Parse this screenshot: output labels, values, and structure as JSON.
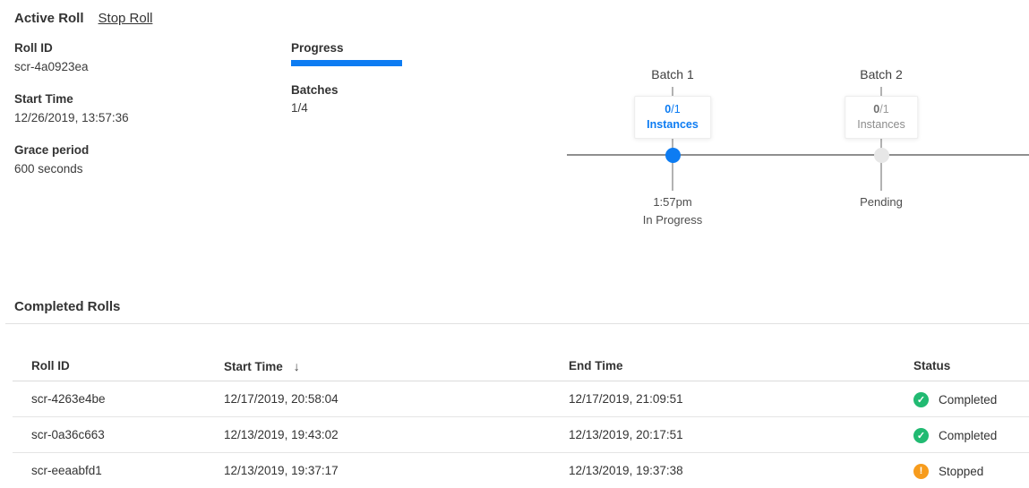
{
  "colors": {
    "accent": "#0d7cf2",
    "success": "#21ba72",
    "warning": "#f79c1d"
  },
  "active_roll": {
    "title": "Active Roll",
    "stop_link": "Stop Roll",
    "details": [
      {
        "label": "Roll ID",
        "value": "scr-4a0923ea"
      },
      {
        "label": "Start Time",
        "value": "12/26/2019, 13:57:36"
      },
      {
        "label": "Grace period",
        "value": "600 seconds"
      }
    ],
    "progress": {
      "label": "Progress",
      "percent": 100
    },
    "batches": {
      "label": "Batches",
      "value": "1/4"
    }
  },
  "timeline": {
    "batches": [
      {
        "name": "Batch 1",
        "count": "0",
        "suffix": "/1",
        "instances_label": "Instances",
        "time": "1:57pm",
        "status": "In Progress",
        "state": "active"
      },
      {
        "name": "Batch 2",
        "count": "0",
        "suffix": "/1",
        "instances_label": "Instances",
        "time": "Pending",
        "status": "",
        "state": "pending"
      }
    ]
  },
  "completed_rolls": {
    "title": "Completed Rolls",
    "columns": {
      "roll_id": "Roll ID",
      "start_time": "Start Time",
      "end_time": "End Time",
      "status": "Status"
    },
    "sort_icon": "↓",
    "rows": [
      {
        "roll_id": "scr-4263e4be",
        "start_time": "12/17/2019, 20:58:04",
        "end_time": "12/17/2019, 21:09:51",
        "status": "Completed",
        "status_type": "success"
      },
      {
        "roll_id": "scr-0a36c663",
        "start_time": "12/13/2019, 19:43:02",
        "end_time": "12/13/2019, 20:17:51",
        "status": "Completed",
        "status_type": "success"
      },
      {
        "roll_id": "scr-eeaabfd1",
        "start_time": "12/13/2019, 19:37:17",
        "end_time": "12/13/2019, 19:37:38",
        "status": "Stopped",
        "status_type": "warning"
      }
    ]
  },
  "icons": {
    "check": "✓",
    "exclamation": "!"
  }
}
